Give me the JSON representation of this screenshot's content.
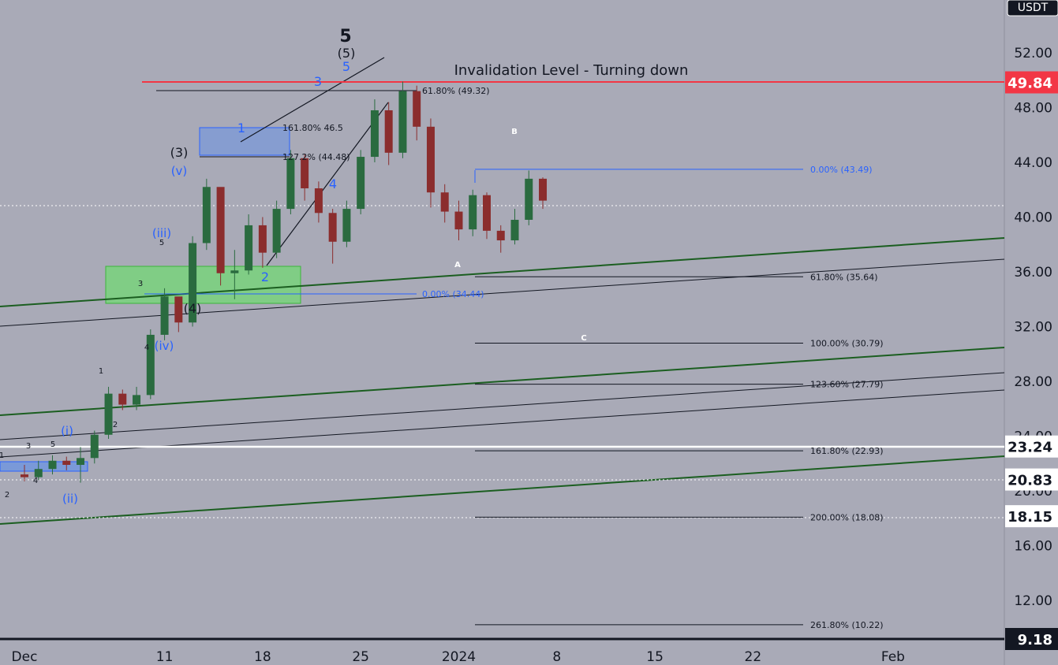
{
  "price_axis": {
    "currency": "USDT",
    "ticks": [
      "52.00",
      "48.00",
      "44.00",
      "40.00",
      "36.00",
      "32.00",
      "28.00",
      "24.00",
      "20.00",
      "16.00",
      "12.00"
    ],
    "tick_values": [
      52,
      48,
      44,
      40,
      36,
      32,
      28,
      24,
      20,
      16,
      12
    ],
    "badges": [
      {
        "label": "49.84",
        "value": 49.84,
        "color": "#f23645",
        "text_color": "#ffffff"
      },
      {
        "label": "23.24",
        "value": 23.24,
        "color": "#ffffff",
        "text_color": "#131722"
      },
      {
        "label": "20.83",
        "value": 20.83,
        "color": "#ffffff",
        "text_color": "#131722"
      },
      {
        "label": "18.15",
        "value": 18.15,
        "color": "#ffffff",
        "text_color": "#131722"
      },
      {
        "label": "9.18",
        "value": 9.18,
        "color": "#131722",
        "text_color": "#ffffff"
      }
    ]
  },
  "time_axis": {
    "labels": [
      "Dec",
      "11",
      "18",
      "25",
      "2024",
      "8",
      "15",
      "22",
      "Feb"
    ],
    "label_days": [
      1,
      11,
      18,
      25,
      32,
      39,
      46,
      53,
      63
    ]
  },
  "annotations": {
    "invalidation": "Invalidation Level - Turning down",
    "fib_upper": "61.80% (49.32)",
    "fib_ext1": "161.80% 46.5",
    "fib_ext2": "127.2% (44.48)",
    "fib_zero_low": "0.00% (34.44)",
    "fib_right": [
      "0.00% (43.49)",
      "61.80% (35.64)",
      "100.00% (30.79)",
      "123.60% (27.79)",
      "161.80% (22.93)",
      "200.00% (18.08)",
      "261.80% (10.22)"
    ],
    "fib_right_values": [
      43.49,
      35.64,
      30.79,
      27.79,
      22.93,
      18.08,
      10.22
    ]
  },
  "wave_labels": {
    "five_major": "5",
    "five_paren": "(5)",
    "five_blue": "5",
    "three_blue": "3",
    "one_blue": "1",
    "two_blue": "2",
    "four_blue": "4",
    "three_paren": "(3)",
    "v_blue": "(v)",
    "iii_blue": "(iii)",
    "iv_blue": "(iv)",
    "four_paren": "(4)",
    "i_blue": "(i)",
    "ii_blue": "(ii)",
    "small": [
      "5",
      "3",
      "4",
      "1",
      "2",
      "3",
      "5",
      "2",
      "4",
      "1"
    ],
    "A": "A",
    "B": "B",
    "C": "C"
  },
  "colors": {
    "background": "#a9aab7",
    "up": "#2a6b3f",
    "down": "#8b2d2d",
    "blue": "#2962ff",
    "red": "#f23645",
    "channel": "#1b5e20"
  },
  "chart_data": {
    "type": "candlestick",
    "title": "",
    "xlabel": "",
    "ylabel": "",
    "ylim": [
      8,
      55
    ],
    "x_unit": "date",
    "series": [
      {
        "values": [
          {
            "x": "2023-12-01",
            "o": 21.2,
            "h": 21.9,
            "l": 20.7,
            "c": 21.0
          },
          {
            "x": "2023-12-02",
            "o": 21.0,
            "h": 22.2,
            "l": 20.8,
            "c": 21.6
          },
          {
            "x": "2023-12-03",
            "o": 21.6,
            "h": 22.6,
            "l": 21.2,
            "c": 22.2
          },
          {
            "x": "2023-12-04",
            "o": 22.2,
            "h": 22.5,
            "l": 21.5,
            "c": 21.9
          },
          {
            "x": "2023-12-05",
            "o": 21.9,
            "h": 23.2,
            "l": 20.6,
            "c": 22.4
          },
          {
            "x": "2023-12-06",
            "o": 22.4,
            "h": 24.4,
            "l": 22.0,
            "c": 24.1
          },
          {
            "x": "2023-12-07",
            "o": 24.1,
            "h": 27.6,
            "l": 23.8,
            "c": 27.1
          },
          {
            "x": "2023-12-08",
            "o": 27.1,
            "h": 27.4,
            "l": 25.9,
            "c": 26.3
          },
          {
            "x": "2023-12-09",
            "o": 26.3,
            "h": 27.6,
            "l": 25.9,
            "c": 27.0
          },
          {
            "x": "2023-12-10",
            "o": 27.0,
            "h": 31.8,
            "l": 26.7,
            "c": 31.4
          },
          {
            "x": "2023-12-11",
            "o": 31.4,
            "h": 34.8,
            "l": 31.0,
            "c": 34.2
          },
          {
            "x": "2023-12-12",
            "o": 34.2,
            "h": 33.8,
            "l": 31.6,
            "c": 32.3
          },
          {
            "x": "2023-12-13",
            "o": 32.3,
            "h": 38.6,
            "l": 32.0,
            "c": 38.1
          },
          {
            "x": "2023-12-14",
            "o": 38.1,
            "h": 42.8,
            "l": 37.6,
            "c": 42.2
          },
          {
            "x": "2023-12-15",
            "o": 42.2,
            "h": 41.2,
            "l": 35.0,
            "c": 35.9
          },
          {
            "x": "2023-12-16",
            "o": 35.9,
            "h": 37.6,
            "l": 34.0,
            "c": 36.1
          },
          {
            "x": "2023-12-17",
            "o": 36.1,
            "h": 40.2,
            "l": 35.8,
            "c": 39.4
          },
          {
            "x": "2023-12-18",
            "o": 39.4,
            "h": 40.0,
            "l": 36.3,
            "c": 37.4
          },
          {
            "x": "2023-12-19",
            "o": 37.4,
            "h": 41.2,
            "l": 37.0,
            "c": 40.6
          },
          {
            "x": "2023-12-20",
            "o": 40.6,
            "h": 44.9,
            "l": 40.2,
            "c": 44.3
          },
          {
            "x": "2023-12-21",
            "o": 44.3,
            "h": 44.6,
            "l": 41.2,
            "c": 42.1
          },
          {
            "x": "2023-12-22",
            "o": 42.1,
            "h": 42.6,
            "l": 39.6,
            "c": 40.3
          },
          {
            "x": "2023-12-23",
            "o": 40.3,
            "h": 40.6,
            "l": 36.6,
            "c": 38.2
          },
          {
            "x": "2023-12-24",
            "o": 38.2,
            "h": 41.2,
            "l": 37.8,
            "c": 40.6
          },
          {
            "x": "2023-12-25",
            "o": 40.6,
            "h": 44.9,
            "l": 40.2,
            "c": 44.4
          },
          {
            "x": "2023-12-26",
            "o": 44.4,
            "h": 48.6,
            "l": 44.0,
            "c": 47.8
          },
          {
            "x": "2023-12-27",
            "o": 47.8,
            "h": 48.4,
            "l": 43.8,
            "c": 44.7
          },
          {
            "x": "2023-12-28",
            "o": 44.7,
            "h": 49.9,
            "l": 44.3,
            "c": 49.2
          },
          {
            "x": "2023-12-29",
            "o": 49.2,
            "h": 49.6,
            "l": 45.6,
            "c": 46.6
          },
          {
            "x": "2023-12-30",
            "o": 46.6,
            "h": 47.2,
            "l": 40.7,
            "c": 41.8
          },
          {
            "x": "2023-12-31",
            "o": 41.8,
            "h": 42.4,
            "l": 39.6,
            "c": 40.4
          },
          {
            "x": "2024-01-01",
            "o": 40.4,
            "h": 41.2,
            "l": 38.3,
            "c": 39.1
          },
          {
            "x": "2024-01-02",
            "o": 39.1,
            "h": 42.0,
            "l": 38.6,
            "c": 41.6
          },
          {
            "x": "2024-01-03",
            "o": 41.6,
            "h": 41.8,
            "l": 38.4,
            "c": 39.0
          },
          {
            "x": "2024-01-04",
            "o": 39.0,
            "h": 39.4,
            "l": 37.4,
            "c": 38.3
          },
          {
            "x": "2024-01-05",
            "o": 38.3,
            "h": 40.6,
            "l": 38.0,
            "c": 39.8
          },
          {
            "x": "2024-01-06",
            "o": 39.8,
            "h": 43.4,
            "l": 39.4,
            "c": 42.8
          },
          {
            "x": "2024-01-07",
            "o": 42.8,
            "h": 42.9,
            "l": 40.6,
            "c": 41.2
          }
        ]
      }
    ]
  }
}
